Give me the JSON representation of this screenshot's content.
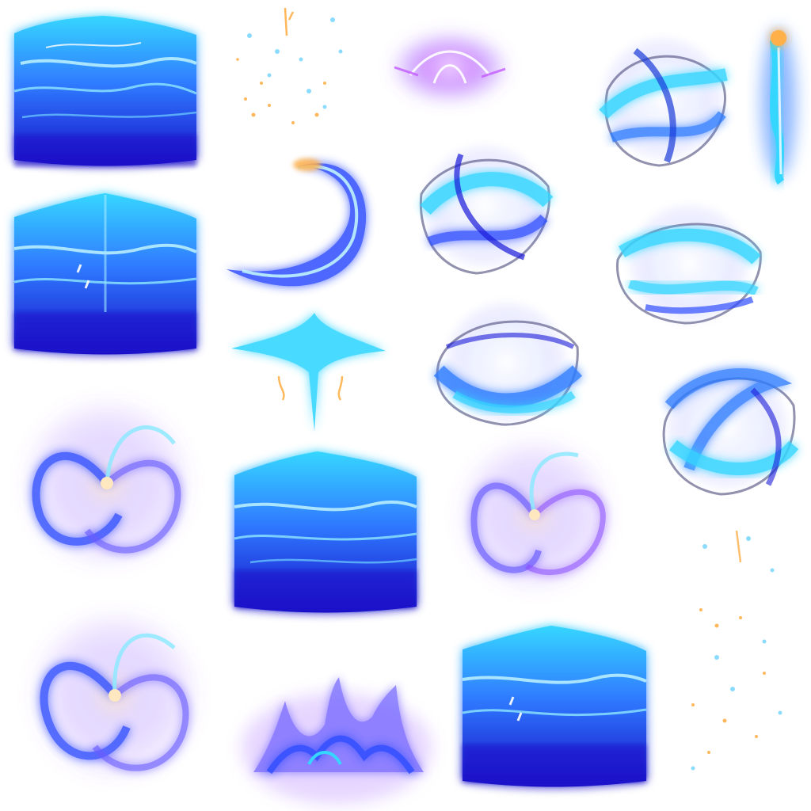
{
  "sheet": {
    "background": "#ffffff",
    "palette": {
      "deep_blue": "#1a1ad8",
      "royal_blue": "#2f4dff",
      "cyan": "#36d6ff",
      "ice": "#bff3ff",
      "violet": "#8a4dff",
      "magenta": "#c35bff",
      "ember": "#ffb04a",
      "smoke": "#4a4a7a"
    },
    "sprites": [
      {
        "name": "water-slab-1",
        "kind": "slab"
      },
      {
        "name": "spark-particles-1",
        "kind": "sparks"
      },
      {
        "name": "violet-burst",
        "kind": "burst"
      },
      {
        "name": "energy-orb-1",
        "kind": "orb"
      },
      {
        "name": "flame-pillar",
        "kind": "pillar"
      },
      {
        "name": "water-slab-2",
        "kind": "slab"
      },
      {
        "name": "crescent-slash",
        "kind": "crescent"
      },
      {
        "name": "energy-orb-2",
        "kind": "orb"
      },
      {
        "name": "energy-orb-3",
        "kind": "orb"
      },
      {
        "name": "cyan-splash",
        "kind": "splash"
      },
      {
        "name": "energy-orb-4",
        "kind": "orb"
      },
      {
        "name": "energy-orb-5",
        "kind": "orb"
      },
      {
        "name": "vortex-swirl-1",
        "kind": "vortex"
      },
      {
        "name": "water-slab-3",
        "kind": "slab"
      },
      {
        "name": "vortex-swirl-2",
        "kind": "vortex"
      },
      {
        "name": "spark-particles-2",
        "kind": "sparks"
      },
      {
        "name": "vortex-swirl-3",
        "kind": "vortex"
      },
      {
        "name": "ground-flame-burst",
        "kind": "groundburst"
      },
      {
        "name": "water-slab-4",
        "kind": "slab"
      }
    ]
  }
}
